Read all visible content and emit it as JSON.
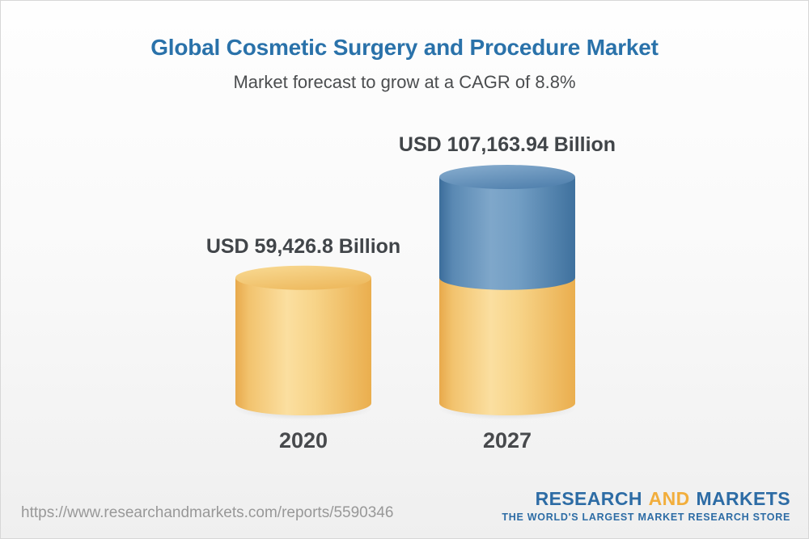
{
  "header": {
    "title": "Global Cosmetic Surgery and Procedure Market",
    "subtitle": "Market forecast to grow at a CAGR of 8.8%"
  },
  "chart_data": {
    "type": "bar",
    "style": "3d-cylinder",
    "title": "Global Cosmetic Surgery and Procedure Market",
    "subtitle": "Market forecast to grow at a CAGR of 8.8%",
    "unit": "USD Billion",
    "cagr_percent": 8.8,
    "categories": [
      "2020",
      "2027"
    ],
    "values": [
      59426.8,
      107163.94
    ],
    "grid": false,
    "axes_shown": false,
    "legend": false,
    "bars": [
      {
        "category": "2020",
        "value": 59426.8,
        "label": "USD 59,426.8 Billion",
        "stack": [
          {
            "to": 59426.8,
            "color": "gold"
          }
        ]
      },
      {
        "category": "2027",
        "value": 107163.94,
        "label": "USD 107,163.94 Billion",
        "stack": [
          {
            "to": 59426.8,
            "color": "gold"
          },
          {
            "to": 107163.94,
            "color": "blue"
          }
        ]
      }
    ]
  },
  "footer": {
    "url": "https://www.researchandmarkets.com/reports/5590346",
    "logo": {
      "word1": "RESEARCH",
      "word2": "AND",
      "word3": "MARKETS",
      "tagline": "THE WORLD'S LARGEST MARKET RESEARCH STORE"
    }
  },
  "colors": {
    "title_blue": "#2a72aa",
    "text_dark": "#45484b",
    "url_gray": "#989898",
    "logo_blue": "#2d6ca5",
    "logo_gold": "#f2ae3c",
    "bar_gold_mid": "#f9d995",
    "bar_gold_edge": "#e9ae4f",
    "bar_blue_mid": "#7fa7ca",
    "bar_blue_edge": "#3e6f9d"
  }
}
